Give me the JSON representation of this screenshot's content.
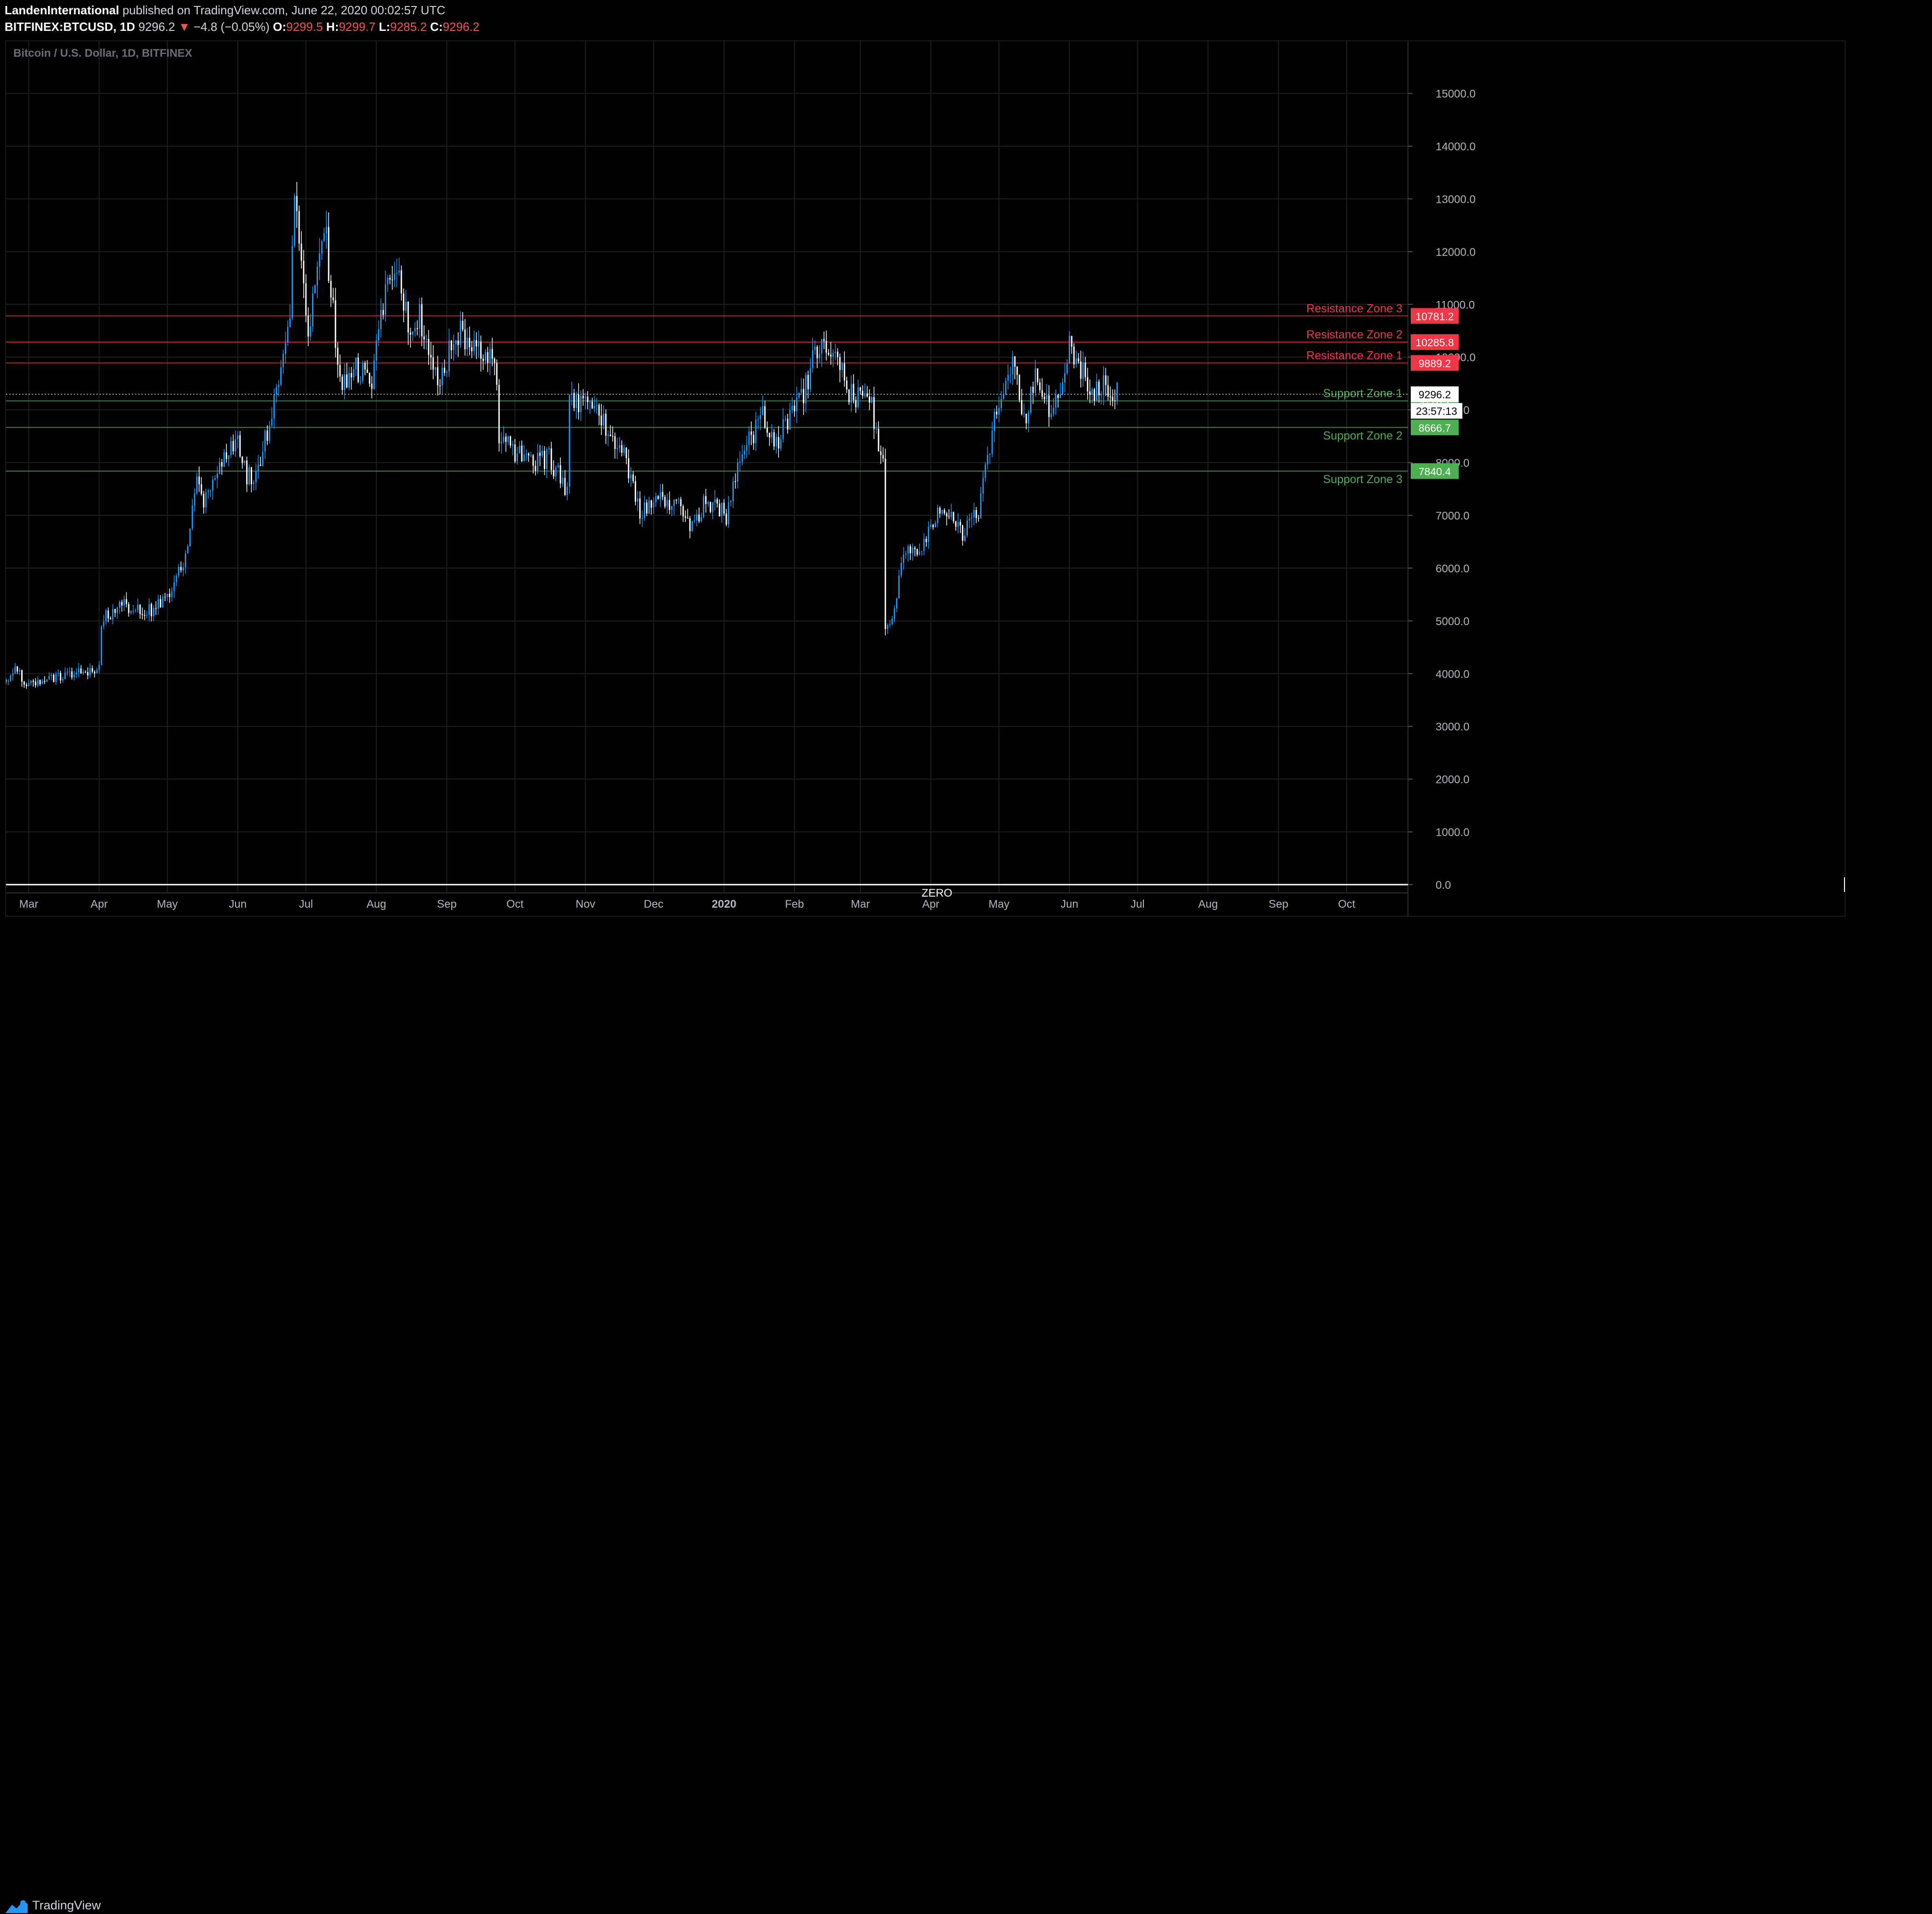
{
  "header": {
    "author": "LandenInternational",
    "published_text": "published on TradingView.com, June 22, 2020 00:02:57 UTC",
    "symbol": "BITFINEX:BTCUSD, 1D",
    "last_price": "9296.2",
    "change_arrow": "▼",
    "change_text": "−4.8 (−0.05%)",
    "open_label": "O:",
    "open_value": "9299.5",
    "high_label": "H:",
    "high_value": "9299.7",
    "low_label": "L:",
    "low_value": "9285.2",
    "close_label": "C:",
    "close_value": "9296.2"
  },
  "legend_title": "Bitcoin / U.S. Dollar, 1D, BITFINEX",
  "footer": {
    "brand": "TradingView"
  },
  "colors": {
    "bull": "#2196f3",
    "bear": "#ffffff",
    "resistance": "#f23645",
    "support": "#4caf50",
    "grid": "#1c1f26",
    "text": "#d1d4dc"
  },
  "chart_data": {
    "type": "candlestick",
    "ylim": [
      0,
      15800
    ],
    "y_ticks": [
      0,
      1000,
      2000,
      3000,
      4000,
      5000,
      6000,
      7000,
      8000,
      9000,
      10000,
      11000,
      12000,
      13000,
      14000,
      15000
    ],
    "y_tick_labels": [
      "0.0",
      "1000.0",
      "2000.0",
      "3000.0",
      "4000.0",
      "5000.0",
      "6000.0",
      "7000.0",
      "8000.0",
      "9000.0",
      "10000.0",
      "11000.0",
      "12000.0",
      "13000.0",
      "14000.0",
      "15000.0"
    ],
    "x_ticks": [
      "Mar",
      "Apr",
      "May",
      "Jun",
      "Jul",
      "Aug",
      "Sep",
      "Oct",
      "Nov",
      "Dec",
      "2020",
      "Feb",
      "Mar",
      "Apr",
      "May",
      "Jun",
      "Jul",
      "Aug",
      "Sep",
      "Oct"
    ],
    "x_range": [
      "2019-02-19",
      "2020-10-28"
    ],
    "x_tick_dates": [
      "2019-03-01",
      "2019-04-01",
      "2019-05-01",
      "2019-06-01",
      "2019-07-01",
      "2019-08-01",
      "2019-09-01",
      "2019-10-01",
      "2019-11-01",
      "2019-12-01",
      "2020-01-01",
      "2020-02-01",
      "2020-03-01",
      "2020-04-01",
      "2020-05-01",
      "2020-06-01",
      "2020-07-01",
      "2020-08-01",
      "2020-09-01",
      "2020-10-01"
    ],
    "series_anchors": [
      [
        "2019-02-19",
        3880
      ],
      [
        "2019-02-23",
        4120
      ],
      [
        "2019-02-27",
        3850
      ],
      [
        "2019-03-12",
        3900
      ],
      [
        "2019-03-30",
        4100
      ],
      [
        "2019-04-01",
        4150
      ],
      [
        "2019-04-02",
        5000
      ],
      [
        "2019-04-10",
        5300
      ],
      [
        "2019-04-25",
        5200
      ],
      [
        "2019-05-03",
        5600
      ],
      [
        "2019-05-10",
        6300
      ],
      [
        "2019-05-14",
        7900
      ],
      [
        "2019-05-17",
        7300
      ],
      [
        "2019-05-31",
        8500
      ],
      [
        "2019-06-05",
        7700
      ],
      [
        "2019-06-10",
        7900
      ],
      [
        "2019-06-20",
        9600
      ],
      [
        "2019-06-24",
        11000
      ],
      [
        "2019-06-26",
        12900
      ],
      [
        "2019-07-02",
        10500
      ],
      [
        "2019-07-09",
        12600
      ],
      [
        "2019-07-12",
        11300
      ],
      [
        "2019-07-16",
        9400
      ],
      [
        "2019-07-23",
        9800
      ],
      [
        "2019-07-30",
        9500
      ],
      [
        "2019-08-06",
        11700
      ],
      [
        "2019-08-12",
        11400
      ],
      [
        "2019-08-16",
        10200
      ],
      [
        "2019-08-20",
        10800
      ],
      [
        "2019-08-29",
        9500
      ],
      [
        "2019-09-05",
        10500
      ],
      [
        "2019-09-20",
        10100
      ],
      [
        "2019-09-23",
        9700
      ],
      [
        "2019-09-24",
        8500
      ],
      [
        "2019-10-06",
        8000
      ],
      [
        "2019-10-16",
        8100
      ],
      [
        "2019-10-24",
        7450
      ],
      [
        "2019-10-25",
        9200
      ],
      [
        "2019-10-31",
        9150
      ],
      [
        "2019-11-08",
        8800
      ],
      [
        "2019-11-18",
        8200
      ],
      [
        "2019-11-25",
        7100
      ],
      [
        "2019-12-04",
        7300
      ],
      [
        "2019-12-15",
        7100
      ],
      [
        "2019-12-17",
        6650
      ],
      [
        "2019-12-24",
        7300
      ],
      [
        "2020-01-02",
        7000
      ],
      [
        "2020-01-08",
        8050
      ],
      [
        "2020-01-18",
        8900
      ],
      [
        "2020-01-24",
        8400
      ],
      [
        "2020-02-04",
        9200
      ],
      [
        "2020-02-12",
        10300
      ],
      [
        "2020-02-19",
        10200
      ],
      [
        "2020-02-25",
        9300
      ],
      [
        "2020-03-06",
        9100
      ],
      [
        "2020-03-11",
        7900
      ],
      [
        "2020-03-12",
        4900
      ],
      [
        "2020-03-17",
        5300
      ],
      [
        "2020-03-19",
        6200
      ],
      [
        "2020-03-27",
        6400
      ],
      [
        "2020-04-06",
        7200
      ],
      [
        "2020-04-15",
        6650
      ],
      [
        "2020-04-22",
        7100
      ],
      [
        "2020-04-29",
        8800
      ],
      [
        "2020-05-07",
        9900
      ],
      [
        "2020-05-12",
        8800
      ],
      [
        "2020-05-18",
        9700
      ],
      [
        "2020-05-24",
        8800
      ],
      [
        "2020-06-01",
        10200
      ],
      [
        "2020-06-11",
        9300
      ],
      [
        "2020-06-14",
        9500
      ],
      [
        "2020-06-22",
        9296.2
      ]
    ],
    "horizontal_levels": [
      {
        "label": "Resistance Zone 3",
        "value": 10781.2,
        "value_text": "10781.2",
        "kind": "resistance"
      },
      {
        "label": "Resistance Zone 2",
        "value": 10285.8,
        "value_text": "10285.8",
        "kind": "resistance"
      },
      {
        "label": "Resistance Zone 1",
        "value": 9889.2,
        "value_text": "9889.2",
        "kind": "resistance"
      },
      {
        "label": "Support Zone 1",
        "value": 9170.7,
        "value_text": "9170.7",
        "kind": "support"
      },
      {
        "label": "Support Zone 2",
        "value": 8666.7,
        "value_text": "8666.7",
        "kind": "support"
      },
      {
        "label": "Support Zone 3",
        "value": 7840.4,
        "value_text": "7840.4",
        "kind": "support"
      },
      {
        "label": "ZERO",
        "value": 0,
        "value_text": "0.0",
        "kind": "zero"
      }
    ],
    "last_price": {
      "value": 9296.2,
      "value_text": "9296.2",
      "countdown": "23:57:13"
    }
  }
}
